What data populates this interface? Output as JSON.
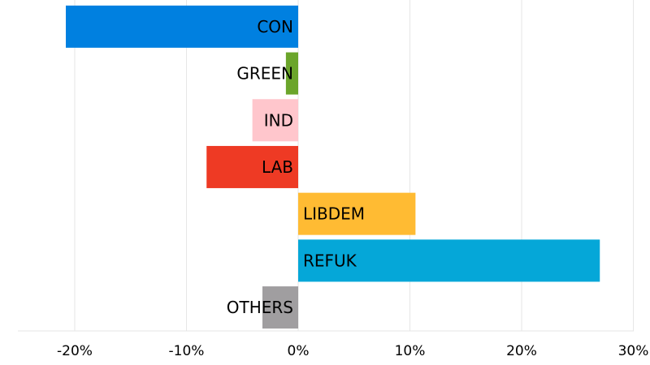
{
  "chart_data": {
    "type": "bar",
    "orientation": "horizontal",
    "categories": [
      "CON",
      "GREEN",
      "IND",
      "LAB",
      "LIBDEM",
      "REFUK",
      "OTHERS"
    ],
    "values": [
      -20.8,
      -1.1,
      -4.1,
      -8.2,
      10.5,
      27.0,
      -3.2
    ],
    "colors": [
      "#0080e0",
      "#6ba52b",
      "#ffc6cc",
      "#ee3a24",
      "#ffbb33",
      "#05a7d8",
      "#a09ea0"
    ],
    "xlim": [
      -25,
      30
    ],
    "xticks": [
      -20,
      -10,
      0,
      10,
      20,
      30
    ],
    "xtick_labels": [
      "-20%",
      "-10%",
      "0%",
      "10%",
      "20%",
      "30%"
    ],
    "title": "",
    "xlabel": "",
    "ylabel": "",
    "grid": "vertical",
    "legend": "none"
  }
}
